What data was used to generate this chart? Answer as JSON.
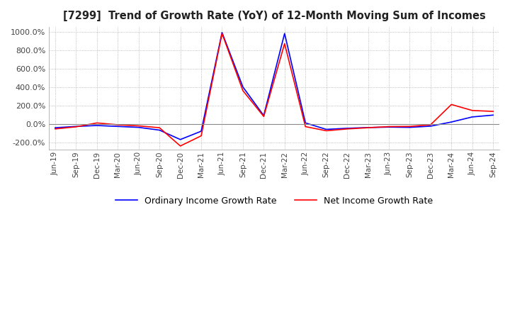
{
  "title": "[7299]  Trend of Growth Rate (YoY) of 12-Month Moving Sum of Incomes",
  "ylim": [
    -280,
    1050
  ],
  "yticks": [
    -200,
    0,
    200,
    400,
    600,
    800,
    1000
  ],
  "background_color": "#ffffff",
  "plot_background_color": "#ffffff",
  "grid_color": "#aaaaaa",
  "legend_labels": [
    "Ordinary Income Growth Rate",
    "Net Income Growth Rate"
  ],
  "legend_colors": [
    "#0000ff",
    "#ff0000"
  ],
  "x_labels": [
    "Jun-19",
    "Sep-19",
    "Dec-19",
    "Mar-20",
    "Jun-20",
    "Sep-20",
    "Dec-20",
    "Mar-21",
    "Jun-21",
    "Sep-21",
    "Dec-21",
    "Mar-22",
    "Jun-22",
    "Sep-22",
    "Dec-22",
    "Mar-23",
    "Jun-23",
    "Sep-23",
    "Dec-23",
    "Mar-24",
    "Jun-24",
    "Sep-24"
  ],
  "ordinary_income": [
    -42,
    -28,
    -18,
    -28,
    -38,
    -68,
    -170,
    -80,
    990,
    400,
    90,
    980,
    10,
    -60,
    -48,
    -40,
    -35,
    -38,
    -25,
    20,
    75,
    95
  ],
  "net_income": [
    -55,
    -32,
    10,
    -10,
    -22,
    -42,
    -240,
    -130,
    980,
    360,
    80,
    870,
    -30,
    -75,
    -55,
    -42,
    -30,
    -28,
    -10,
    210,
    145,
    135
  ]
}
